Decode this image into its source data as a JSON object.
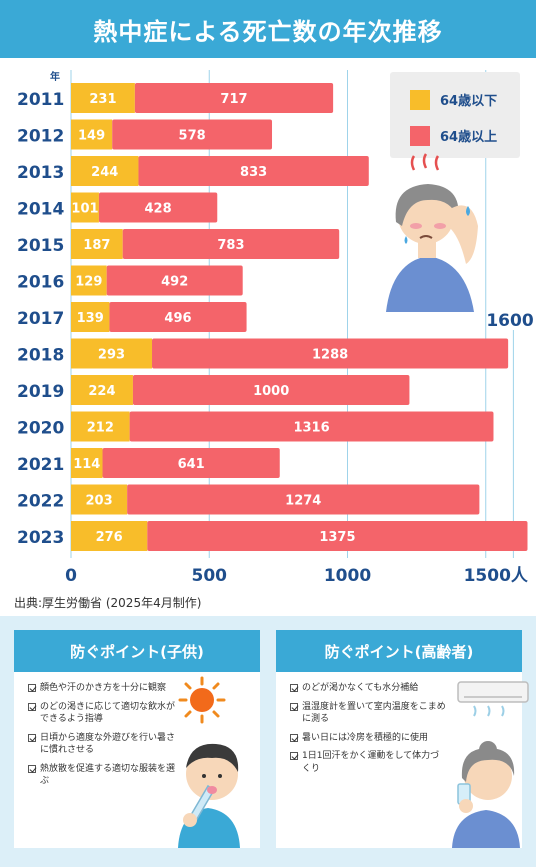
{
  "title": "熱中症による死亡数の年次推移",
  "source": "出典:厚生労働省 (2025年4月制作)",
  "colors": {
    "header": "#3aa9d6",
    "under64": "#f8bd2a",
    "over64": "#f4646a"
  },
  "chart_data": {
    "type": "bar",
    "orientation": "horizontal",
    "stacked": true,
    "year_unit_label": "年",
    "x_unit_label": "人",
    "categories": [
      "2011",
      "2012",
      "2013",
      "2014",
      "2015",
      "2016",
      "2017",
      "2018",
      "2019",
      "2020",
      "2021",
      "2022",
      "2023"
    ],
    "series": [
      {
        "name": "64歳以下",
        "color": "#f8bd2a",
        "values": [
          231,
          149,
          244,
          101,
          187,
          129,
          139,
          293,
          224,
          212,
          114,
          203,
          276
        ]
      },
      {
        "name": "64歳以上",
        "color": "#f4646a",
        "values": [
          717,
          578,
          833,
          428,
          783,
          492,
          496,
          1288,
          1000,
          1316,
          641,
          1274,
          1375
        ]
      }
    ],
    "xlim": [
      0,
      1600
    ],
    "xticks": [
      0,
      500,
      1000,
      1500
    ],
    "tick_labels": [
      "0",
      "500",
      "1000",
      "1500人"
    ],
    "annotation": "1600",
    "legend_position": "top-right",
    "grid": true
  },
  "panels": [
    {
      "title": "防ぐポイント(子供)",
      "items": [
        "顔色や汗のかき方を十分に観察",
        "のどの渇きに応じて適切な飲水ができるよう指導",
        "日頃から適度な外遊びを行い暑さに慣れさせる",
        "熱放散を促進する適切な服装を選ぶ"
      ]
    },
    {
      "title": "防ぐポイント(高齢者)",
      "items": [
        "のどが渇かなくても水分補給",
        "温湿度計を置いて室内温度をこまめに測る",
        "暑い日には冷房を積極的に使用",
        "1日1回汗をかく運動をして体力づくり"
      ]
    }
  ]
}
